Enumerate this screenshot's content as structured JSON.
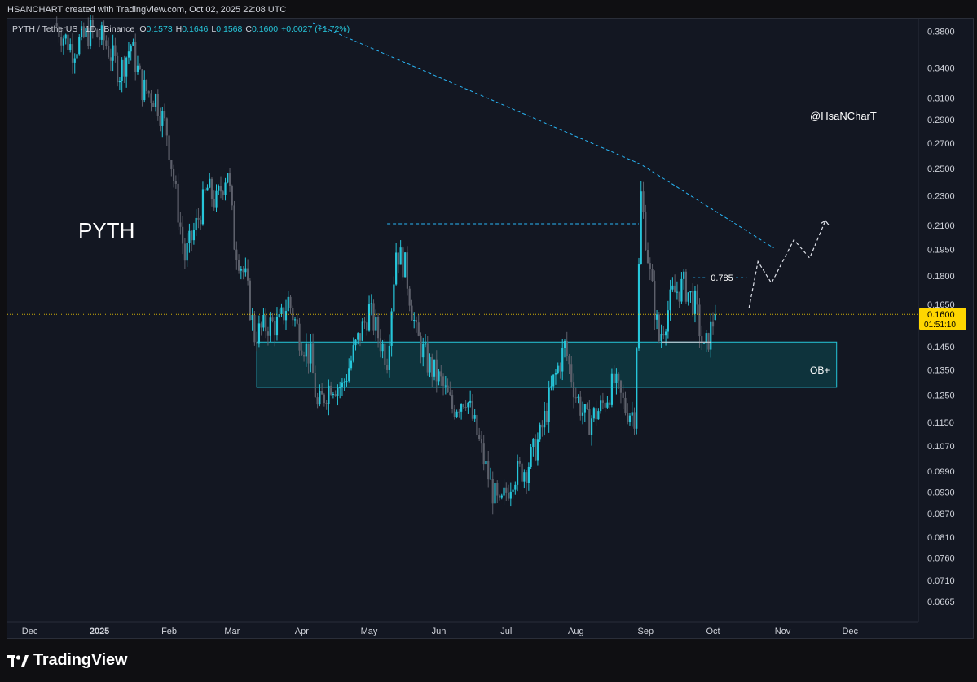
{
  "header": {
    "attribution": "HSANCHART created with TradingView.com, Oct 02, 2025 22:08 UTC"
  },
  "legend": {
    "symbol": "PYTH / TetherUS · 1D · Binance",
    "o_label": "O",
    "o_value": "0.1573",
    "h_label": "H",
    "h_value": "0.1646",
    "l_label": "L",
    "l_value": "0.1568",
    "c_label": "C",
    "c_value": "0.1600",
    "change": "+0.0027 (+1.72%)"
  },
  "annotations": {
    "asset_label": "PYTH",
    "watermark": "@HsaNCharT",
    "ob_label": "OB+",
    "fib_label": "0.785"
  },
  "price_tag": {
    "price": "0.1600",
    "countdown": "01:51:10"
  },
  "footer": {
    "brand": "TradingView"
  },
  "colors": {
    "background": "#131722",
    "candle_up": "#26c6da",
    "candle_down": "#5d606b",
    "trendline": "#29b6f6",
    "ob_zone_fill": "#0b4a52",
    "ob_zone_border": "#26c6da",
    "price_tag": "#ffd600"
  },
  "chart_data": {
    "type": "candlestick",
    "title": "PYTH / TetherUS · 1D · Binance",
    "y_scale": "log",
    "ylim": [
      0.0625,
      0.395
    ],
    "y_ticks": [
      "0.3800",
      "0.3400",
      "0.3100",
      "0.2900",
      "0.2700",
      "0.2500",
      "0.2300",
      "0.2100",
      "0.1950",
      "0.1800",
      "0.1650",
      "0.1450",
      "0.1350",
      "0.1250",
      "0.1150",
      "0.1070",
      "0.0990",
      "0.0930",
      "0.0870",
      "0.0810",
      "0.0760",
      "0.0710",
      "0.0665"
    ],
    "x_ticks": [
      "Dec",
      "2025",
      "Feb",
      "Mar",
      "Apr",
      "May",
      "Jun",
      "Jul",
      "Aug",
      "Sep",
      "Oct",
      "Nov",
      "Dec"
    ],
    "x_range": [
      "2024-11-21",
      "2025-12-31"
    ],
    "ohlc_path": [
      [
        "2024-12-12",
        0.39
      ],
      [
        "2024-12-20",
        0.36
      ],
      [
        "2024-12-28",
        0.38
      ],
      [
        "2025-01-03",
        0.37
      ],
      [
        "2025-01-10",
        0.335
      ],
      [
        "2025-01-15",
        0.365
      ],
      [
        "2025-01-20",
        0.32
      ],
      [
        "2025-01-26",
        0.31
      ],
      [
        "2025-01-31",
        0.28
      ],
      [
        "2025-02-04",
        0.23
      ],
      [
        "2025-02-08",
        0.19
      ],
      [
        "2025-02-13",
        0.21
      ],
      [
        "2025-02-18",
        0.235
      ],
      [
        "2025-02-22",
        0.225
      ],
      [
        "2025-02-27",
        0.25
      ],
      [
        "2025-03-02",
        0.2
      ],
      [
        "2025-03-07",
        0.178
      ],
      [
        "2025-03-11",
        0.15
      ],
      [
        "2025-03-17",
        0.155
      ],
      [
        "2025-03-22",
        0.155
      ],
      [
        "2025-03-26",
        0.167
      ],
      [
        "2025-03-31",
        0.15
      ],
      [
        "2025-04-05",
        0.14
      ],
      [
        "2025-04-08",
        0.12
      ],
      [
        "2025-04-14",
        0.13
      ],
      [
        "2025-04-19",
        0.128
      ],
      [
        "2025-04-25",
        0.145
      ],
      [
        "2025-05-01",
        0.162
      ],
      [
        "2025-05-05",
        0.15
      ],
      [
        "2025-05-09",
        0.14
      ],
      [
        "2025-05-13",
        0.195
      ],
      [
        "2025-05-17",
        0.185
      ],
      [
        "2025-05-22",
        0.15
      ],
      [
        "2025-05-27",
        0.138
      ],
      [
        "2025-06-02",
        0.13
      ],
      [
        "2025-06-07",
        0.12
      ],
      [
        "2025-06-13",
        0.125
      ],
      [
        "2025-06-19",
        0.108
      ],
      [
        "2025-06-24",
        0.095
      ],
      [
        "2025-06-28",
        0.088
      ],
      [
        "2025-07-04",
        0.098
      ],
      [
        "2025-07-10",
        0.1
      ],
      [
        "2025-07-16",
        0.11
      ],
      [
        "2025-07-22",
        0.13
      ],
      [
        "2025-07-27",
        0.145
      ],
      [
        "2025-08-01",
        0.125
      ],
      [
        "2025-08-06",
        0.115
      ],
      [
        "2025-08-12",
        0.12
      ],
      [
        "2025-08-18",
        0.13
      ],
      [
        "2025-08-23",
        0.12
      ],
      [
        "2025-08-27",
        0.118
      ],
      [
        "2025-08-30",
        0.23
      ],
      [
        "2025-09-03",
        0.18
      ],
      [
        "2025-09-07",
        0.148
      ],
      [
        "2025-09-13",
        0.17
      ],
      [
        "2025-09-18",
        0.175
      ],
      [
        "2025-09-23",
        0.165
      ],
      [
        "2025-09-27",
        0.142
      ],
      [
        "2025-10-02",
        0.16
      ]
    ],
    "series": [
      {
        "type": "candlestick",
        "ohlc": {
          "open": 0.1573,
          "high": 0.1646,
          "low": 0.1568,
          "close": 0.16
        }
      }
    ],
    "drawings": {
      "descending_trendline": [
        [
          "2025-04-06",
          0.39
        ],
        [
          "2025-08-30",
          0.253
        ],
        [
          "2025-10-28",
          0.196
        ]
      ],
      "range_high": {
        "y": 0.211,
        "from": "2025-05-09",
        "to": "2025-08-29"
      },
      "swing_low": {
        "y": 0.147,
        "from": "2025-09-08",
        "to": "2025-09-30"
      },
      "fib_level": {
        "label": "0.785",
        "y": 0.179
      },
      "ob_zone": {
        "y_low": 0.128,
        "y_high": 0.147,
        "from": "2025-03-12",
        "to": "2025-11-25",
        "label": "OB+"
      },
      "projection": [
        [
          "2025-10-17",
          0.163
        ],
        [
          "2025-10-21",
          0.188
        ],
        [
          "2025-10-27",
          0.176
        ],
        [
          "2025-11-06",
          0.201
        ],
        [
          "2025-11-13",
          0.19
        ],
        [
          "2025-11-20",
          0.213
        ]
      ],
      "last_price_line": 0.16
    }
  }
}
